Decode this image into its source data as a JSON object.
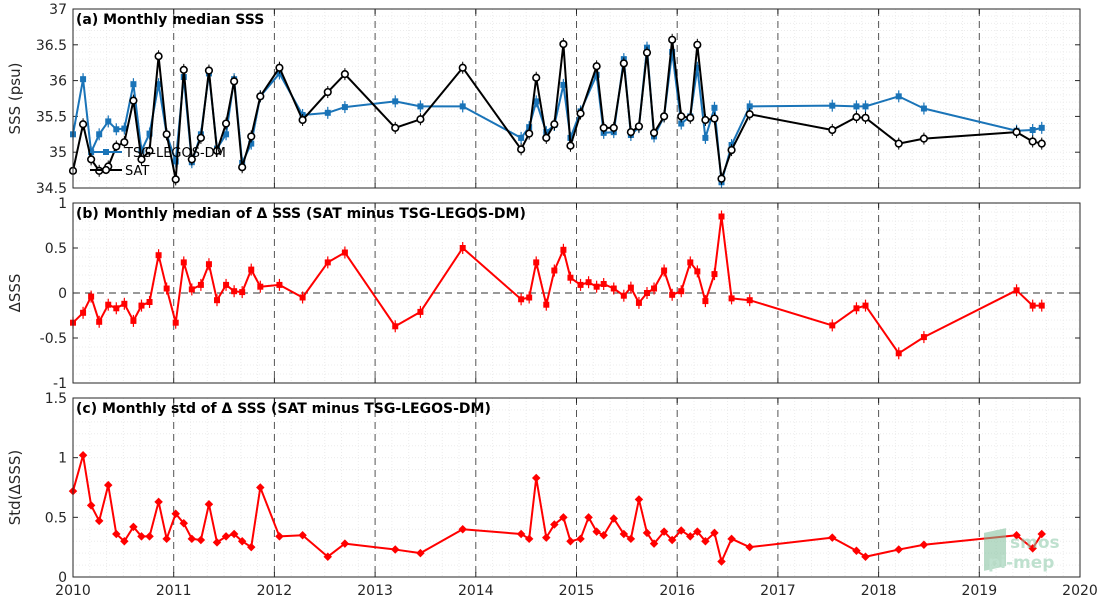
{
  "chart_data": [
    {
      "type": "line",
      "title": "(a) Monthly median SSS",
      "ylabel": "SSS (psu)",
      "ylim": [
        34.5,
        37
      ],
      "yticks": [
        "34.5",
        "35",
        "35.5",
        "36",
        "36.5",
        "37"
      ],
      "legend": {
        "position": "bottom-left",
        "entries": [
          "TSG-LEGOS-DM",
          "SAT"
        ]
      },
      "series": [
        {
          "name": "TSG-LEGOS-DM",
          "color": "#1a74b8",
          "marker": "square",
          "x": [
            2010.0,
            2010.1,
            2010.18,
            2010.26,
            2010.35,
            2010.43,
            2010.51,
            2010.6,
            2010.68,
            2010.76,
            2010.85,
            2010.93,
            2011.02,
            2011.1,
            2011.18,
            2011.27,
            2011.35,
            2011.43,
            2011.52,
            2011.6,
            2011.68,
            2011.77,
            2011.86,
            2012.05,
            2012.28,
            2012.53,
            2012.7,
            2013.2,
            2013.45,
            2013.87,
            2014.45,
            2014.53,
            2014.6,
            2014.7,
            2014.78,
            2014.87,
            2014.94,
            2015.04,
            2015.2,
            2015.27,
            2015.37,
            2015.47,
            2015.54,
            2015.62,
            2015.7,
            2015.77,
            2015.87,
            2015.95,
            2016.04,
            2016.13,
            2016.2,
            2016.28,
            2016.37,
            2016.44,
            2016.54,
            2016.72,
            2017.54,
            2017.78,
            2017.87,
            2018.2,
            2018.45,
            2019.37,
            2019.53,
            2019.62
          ],
          "values": [
            35.25,
            36.02,
            35.0,
            35.25,
            35.43,
            35.32,
            35.33,
            35.95,
            35.02,
            35.26,
            35.95,
            35.25,
            34.87,
            36.05,
            34.86,
            35.25,
            36.1,
            35.05,
            35.25,
            36.02,
            34.85,
            35.12,
            35.78,
            36.1,
            35.52,
            35.55,
            35.63,
            35.71,
            35.64,
            35.64,
            35.2,
            35.35,
            35.71,
            35.28,
            35.38,
            35.94,
            35.2,
            35.57,
            36.08,
            35.27,
            35.28,
            36.3,
            35.24,
            35.35,
            36.46,
            35.22,
            35.5,
            36.4,
            35.4,
            35.5,
            36.18,
            35.2,
            35.62,
            34.58,
            35.1,
            35.64,
            35.65,
            35.64,
            35.64,
            35.78,
            35.61,
            35.3,
            35.31,
            35.34
          ]
        },
        {
          "name": "SAT",
          "color": "#000000",
          "marker": "circle",
          "x": [
            2010.0,
            2010.1,
            2010.18,
            2010.26,
            2010.35,
            2010.43,
            2010.51,
            2010.6,
            2010.68,
            2010.76,
            2010.85,
            2010.93,
            2011.02,
            2011.1,
            2011.18,
            2011.27,
            2011.35,
            2011.43,
            2011.52,
            2011.6,
            2011.68,
            2011.77,
            2011.86,
            2012.05,
            2012.28,
            2012.53,
            2012.7,
            2013.2,
            2013.45,
            2013.87,
            2014.45,
            2014.53,
            2014.6,
            2014.7,
            2014.78,
            2014.87,
            2014.94,
            2015.04,
            2015.2,
            2015.27,
            2015.37,
            2015.47,
            2015.54,
            2015.62,
            2015.7,
            2015.77,
            2015.87,
            2015.95,
            2016.04,
            2016.13,
            2016.2,
            2016.28,
            2016.37,
            2016.44,
            2016.54,
            2016.72,
            2017.54,
            2017.78,
            2017.87,
            2018.2,
            2018.45,
            2019.37,
            2019.53,
            2019.62
          ],
          "values": [
            34.74,
            35.39,
            34.9,
            34.74,
            34.8,
            35.08,
            35.14,
            35.72,
            34.9,
            35.02,
            36.34,
            35.25,
            34.62,
            36.15,
            34.9,
            35.2,
            36.14,
            35.02,
            35.4,
            35.99,
            34.79,
            35.22,
            35.78,
            36.18,
            35.45,
            35.84,
            36.09,
            35.34,
            35.46,
            36.18,
            35.04,
            35.26,
            36.04,
            35.2,
            35.39,
            36.51,
            35.09,
            35.54,
            36.2,
            35.34,
            35.34,
            36.24,
            35.28,
            35.36,
            36.39,
            35.27,
            35.5,
            36.57,
            35.5,
            35.48,
            36.5,
            35.45,
            35.47,
            34.63,
            35.03,
            35.53,
            35.31,
            35.49,
            35.48,
            35.12,
            35.19,
            35.28,
            35.15,
            35.12
          ]
        }
      ]
    },
    {
      "type": "line",
      "title": "(b) Monthly median of Δ SSS (SAT minus TSG-LEGOS-DM)",
      "ylabel": "ΔSSS",
      "ylim": [
        -1,
        1
      ],
      "yticks": [
        "-1",
        "-0.5",
        "0",
        "0.5",
        "1"
      ],
      "reference_line": 0,
      "series": [
        {
          "name": "",
          "color": "#ff0000",
          "marker": "square",
          "x": [
            2010.0,
            2010.1,
            2010.18,
            2010.26,
            2010.35,
            2010.43,
            2010.51,
            2010.6,
            2010.68,
            2010.76,
            2010.85,
            2010.93,
            2011.02,
            2011.1,
            2011.18,
            2011.27,
            2011.35,
            2011.43,
            2011.52,
            2011.6,
            2011.68,
            2011.77,
            2011.86,
            2012.05,
            2012.28,
            2012.53,
            2012.7,
            2013.2,
            2013.45,
            2013.87,
            2014.45,
            2014.53,
            2014.6,
            2014.7,
            2014.78,
            2014.87,
            2014.94,
            2015.04,
            2015.12,
            2015.2,
            2015.27,
            2015.37,
            2015.47,
            2015.54,
            2015.62,
            2015.7,
            2015.77,
            2015.87,
            2015.95,
            2016.04,
            2016.13,
            2016.2,
            2016.28,
            2016.37,
            2016.44,
            2016.54,
            2016.72,
            2017.54,
            2017.78,
            2017.87,
            2018.2,
            2018.45,
            2019.37,
            2019.53,
            2019.62
          ],
          "values": [
            -0.33,
            -0.22,
            -0.04,
            -0.32,
            -0.13,
            -0.17,
            -0.12,
            -0.31,
            -0.14,
            -0.1,
            0.42,
            0.05,
            -0.33,
            0.34,
            0.04,
            0.09,
            0.32,
            -0.08,
            0.09,
            0.02,
            0.01,
            0.26,
            0.07,
            0.09,
            -0.05,
            0.34,
            0.45,
            -0.37,
            -0.21,
            0.5,
            -0.07,
            -0.05,
            0.34,
            -0.13,
            0.25,
            0.48,
            0.17,
            0.09,
            0.12,
            0.07,
            0.1,
            0.05,
            -0.03,
            0.06,
            -0.11,
            0.0,
            0.05,
            0.25,
            -0.02,
            0.02,
            0.34,
            0.24,
            -0.09,
            0.21,
            0.85,
            -0.06,
            -0.08,
            -0.36,
            -0.17,
            -0.14,
            -0.67,
            -0.49,
            0.03,
            -0.14,
            -0.14
          ]
        }
      ]
    },
    {
      "type": "line",
      "title": "(c) Monthly std of Δ SSS (SAT minus TSG-LEGOS-DM)",
      "ylabel": "Std(ΔSSS)",
      "xlabel": "",
      "ylim": [
        0,
        1.5
      ],
      "yticks": [
        "0",
        "0.5",
        "1",
        "1.5"
      ],
      "xlim": [
        2010,
        2020
      ],
      "xticks": [
        "2010",
        "2011",
        "2012",
        "2013",
        "2014",
        "2015",
        "2016",
        "2017",
        "2018",
        "2019",
        "2020"
      ],
      "series": [
        {
          "name": "",
          "color": "#ff0000",
          "marker": "diamond",
          "x": [
            2010.0,
            2010.1,
            2010.18,
            2010.26,
            2010.35,
            2010.43,
            2010.51,
            2010.6,
            2010.68,
            2010.76,
            2010.85,
            2010.93,
            2011.02,
            2011.1,
            2011.18,
            2011.27,
            2011.35,
            2011.43,
            2011.52,
            2011.6,
            2011.68,
            2011.77,
            2011.86,
            2012.05,
            2012.28,
            2012.53,
            2012.7,
            2013.2,
            2013.45,
            2013.87,
            2014.45,
            2014.53,
            2014.6,
            2014.7,
            2014.78,
            2014.87,
            2014.94,
            2015.04,
            2015.12,
            2015.2,
            2015.27,
            2015.37,
            2015.47,
            2015.54,
            2015.62,
            2015.7,
            2015.77,
            2015.87,
            2015.95,
            2016.04,
            2016.13,
            2016.2,
            2016.28,
            2016.37,
            2016.44,
            2016.54,
            2016.72,
            2017.54,
            2017.78,
            2017.87,
            2018.2,
            2018.45,
            2019.37,
            2019.53,
            2019.62
          ],
          "values": [
            0.72,
            1.02,
            0.6,
            0.47,
            0.77,
            0.36,
            0.3,
            0.42,
            0.34,
            0.34,
            0.63,
            0.32,
            0.53,
            0.45,
            0.32,
            0.31,
            0.61,
            0.29,
            0.34,
            0.36,
            0.3,
            0.25,
            0.75,
            0.34,
            0.35,
            0.17,
            0.28,
            0.23,
            0.2,
            0.4,
            0.36,
            0.32,
            0.83,
            0.33,
            0.44,
            0.5,
            0.3,
            0.32,
            0.5,
            0.38,
            0.35,
            0.49,
            0.36,
            0.32,
            0.65,
            0.37,
            0.28,
            0.38,
            0.31,
            0.39,
            0.34,
            0.38,
            0.3,
            0.37,
            0.13,
            0.32,
            0.25,
            0.33,
            0.22,
            0.17,
            0.23,
            0.27,
            0.35,
            0.24,
            0.36
          ]
        }
      ]
    }
  ],
  "watermark": {
    "line1": "smos",
    "line2": "pi-mep"
  }
}
